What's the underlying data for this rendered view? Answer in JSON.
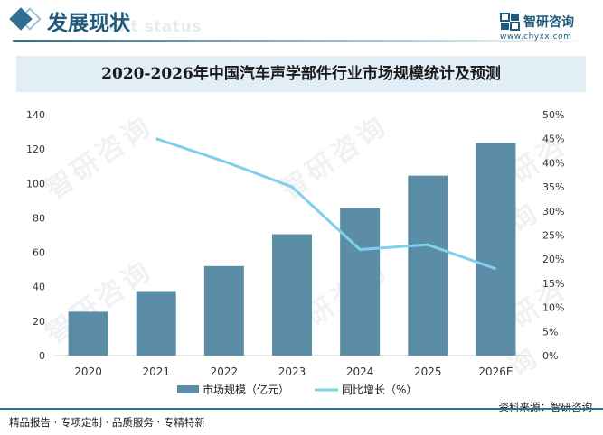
{
  "header": {
    "section_title": "发展现状",
    "section_subtitle": "ent status",
    "logo_name": "智研咨询",
    "logo_url": "www.chyxx.com"
  },
  "chart_data": {
    "type": "bar+line",
    "title": "2020-2026年中国汽车声学部件行业市场规模统计及预测",
    "categories": [
      "2020",
      "2021",
      "2022",
      "2023",
      "2024",
      "2025",
      "2026E"
    ],
    "series": [
      {
        "name": "市场规模（亿元）",
        "type": "bar",
        "axis": "left",
        "color": "#5b8ea6",
        "values": [
          25.5,
          37.5,
          52,
          70.5,
          85.5,
          104.5,
          123.5
        ]
      },
      {
        "name": "同比增长（%）",
        "type": "line",
        "axis": "right",
        "color": "#7fd0ee",
        "values": [
          null,
          45,
          40.3,
          35,
          22,
          23,
          18
        ]
      }
    ],
    "y_left": {
      "min": 0,
      "max": 140,
      "step": 20,
      "ticks": [
        "0",
        "20",
        "40",
        "60",
        "80",
        "100",
        "120",
        "140"
      ]
    },
    "y_right": {
      "min": 0,
      "max": 50,
      "step": 5,
      "ticks": [
        "0%",
        "5%",
        "10%",
        "15%",
        "20%",
        "25%",
        "30%",
        "35%",
        "40%",
        "45%",
        "50%"
      ]
    },
    "legend": [
      "市场规模（亿元）",
      "同比增长（%）"
    ],
    "grid": false
  },
  "footer": {
    "tagline": "精品报告 · 专项定制 · 品质服务 · 专精特新",
    "source": "资料来源：智研咨询"
  },
  "watermark_text": "智研咨询"
}
